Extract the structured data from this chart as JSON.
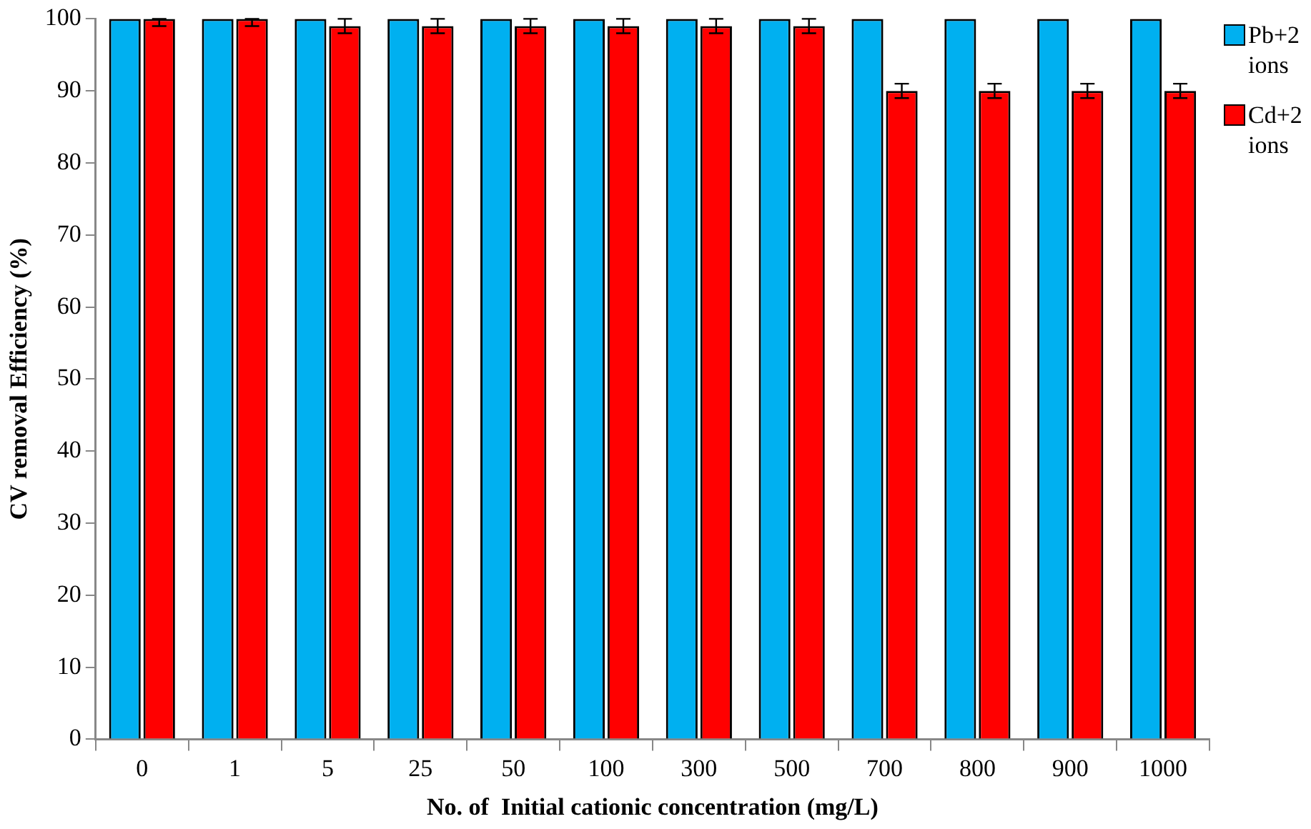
{
  "chart_data": {
    "type": "bar",
    "xlabel": "No. of  Initial cationic concentration (mg/L)",
    "ylabel": "CV removal Efficiency (%)",
    "categories": [
      "0",
      "1",
      "5",
      "25",
      "50",
      "100",
      "300",
      "500",
      "700",
      "800",
      "900",
      "1000"
    ],
    "series": [
      {
        "name": "Pb+2 ions",
        "color": "#00b0f0",
        "values": [
          100,
          100,
          100,
          100,
          100,
          100,
          100,
          100,
          100,
          100,
          100,
          100
        ]
      },
      {
        "name": "Cd+2 ions",
        "color": "#ff0000",
        "values": [
          100,
          100,
          99,
          99,
          99,
          99,
          99,
          99,
          90,
          90,
          90,
          90
        ],
        "errors": [
          [
            99,
            100
          ],
          [
            99,
            100
          ],
          1,
          1,
          1,
          1,
          1,
          1,
          1,
          1,
          1,
          1
        ]
      }
    ],
    "ylim": [
      0,
      100
    ],
    "yticks": [
      0,
      10,
      20,
      30,
      40,
      50,
      60,
      70,
      80,
      90,
      100
    ],
    "grid": false,
    "legend": "top right"
  }
}
